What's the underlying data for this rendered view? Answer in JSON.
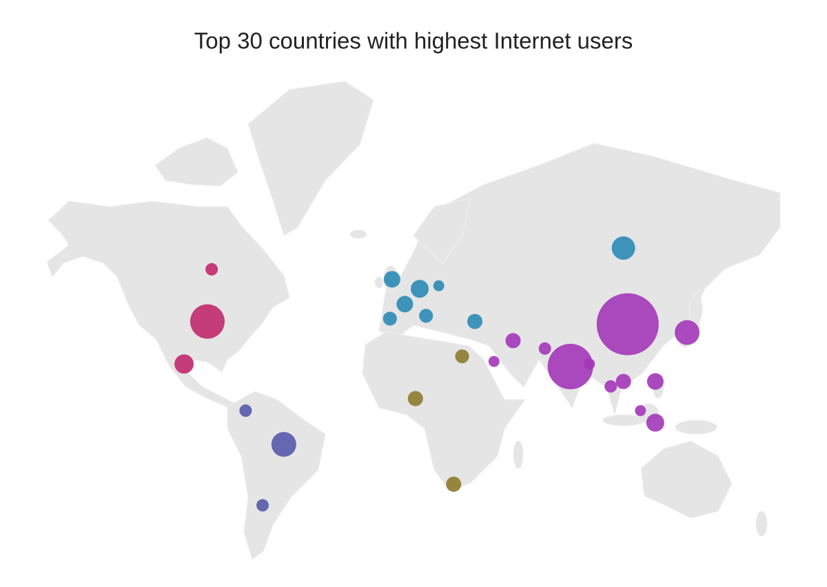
{
  "chart_data": {
    "type": "bubble-map",
    "title": "Top 30 countries with highest Internet users",
    "series": [
      {
        "color": "#c0296c",
        "lon": [
          -88,
          -86,
          -99
        ],
        "lat": [
          39,
          56,
          23
        ],
        "values": [
          247,
          32,
          77
        ]
      },
      {
        "color": "#2b8ab5",
        "lon": [
          -1,
          12,
          21,
          5,
          15,
          -2,
          38,
          108
        ],
        "lat": [
          53,
          50,
          51,
          45,
          41,
          40,
          39,
          62
        ],
        "values": [
          57,
          67,
          25,
          57,
          40,
          40,
          48,
          114
        ]
      },
      {
        "color": "#8c7a2c",
        "lon": [
          32,
          10,
          28
        ],
        "lat": [
          26,
          9,
          -26
        ],
        "values": [
          40,
          48,
          48
        ]
      },
      {
        "color": "#5859ab",
        "lon": [
          -70,
          -52,
          -62
        ],
        "lat": [
          4,
          -10,
          -34
        ],
        "values": [
          32,
          128,
          32
        ]
      },
      {
        "color": "#a336b8",
        "lon": [
          110,
          83,
          138,
          56,
          47,
          71,
          92,
          108,
          102,
          123,
          116,
          123
        ],
        "lat": [
          38,
          22,
          35,
          32,
          24,
          29,
          23,
          16,
          14,
          16,
          4,
          -1
        ],
        "values": [
          800,
          430,
          128,
          48,
          25,
          32,
          25,
          48,
          32,
          57,
          25,
          67
        ]
      }
    ]
  }
}
